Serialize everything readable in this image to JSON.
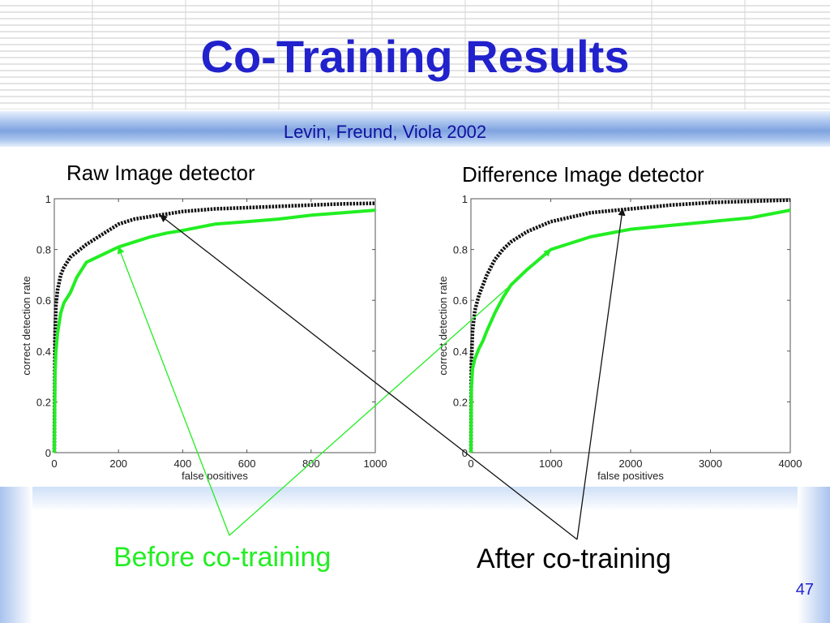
{
  "slide": {
    "title": "Co-Training Results",
    "citation": "Levin, Freund, Viola 2002",
    "page_number": "47",
    "annotations": {
      "before": "Before co-training",
      "after": "After co-training"
    },
    "colors": {
      "title": "#2222cc",
      "before": "#22ee22",
      "after": "#111111",
      "band": "#7fa3e0"
    }
  },
  "chart_data": [
    {
      "type": "line",
      "title": "Raw Image detector",
      "xlabel": "false positives",
      "ylabel": "correct detection rate",
      "xlim": [
        0,
        1000
      ],
      "ylim": [
        0,
        1
      ],
      "xticks": [
        "0",
        "200",
        "400",
        "600",
        "800",
        "1000"
      ],
      "yticks": [
        "0",
        "0.2",
        "0.4",
        "0.6",
        "0.8",
        "1"
      ],
      "xtick_values": [
        0,
        200,
        400,
        600,
        800,
        1000
      ],
      "ytick_values": [
        0,
        0.2,
        0.4,
        0.6,
        0.8,
        1
      ],
      "grid": false,
      "series": [
        {
          "style": "dotted",
          "color": "#111111",
          "x": [
            0,
            2,
            5,
            10,
            20,
            30,
            50,
            70,
            100,
            150,
            200,
            250,
            300,
            350,
            400,
            500,
            600,
            700,
            800,
            900,
            1000
          ],
          "y": [
            0.0,
            0.45,
            0.58,
            0.64,
            0.7,
            0.73,
            0.77,
            0.79,
            0.82,
            0.86,
            0.9,
            0.92,
            0.93,
            0.94,
            0.95,
            0.96,
            0.965,
            0.97,
            0.975,
            0.98,
            0.982
          ]
        },
        {
          "style": "solid",
          "color": "#22ee22",
          "x": [
            0,
            2,
            5,
            10,
            20,
            30,
            50,
            70,
            100,
            150,
            200,
            250,
            300,
            350,
            400,
            500,
            600,
            700,
            800,
            900,
            1000
          ],
          "y": [
            0.0,
            0.3,
            0.4,
            0.47,
            0.55,
            0.59,
            0.63,
            0.69,
            0.75,
            0.78,
            0.81,
            0.83,
            0.85,
            0.865,
            0.875,
            0.9,
            0.91,
            0.92,
            0.935,
            0.945,
            0.955
          ]
        }
      ]
    },
    {
      "type": "line",
      "title": "Difference Image detector",
      "xlabel": "false positives",
      "ylabel": "correct detection rate",
      "xlim": [
        0,
        4000
      ],
      "ylim": [
        0,
        1
      ],
      "xticks": [
        "0",
        "1000",
        "2000",
        "3000",
        "4000"
      ],
      "yticks": [
        "0",
        "0.2",
        "0.4",
        "0.6",
        "0.8",
        "1"
      ],
      "xtick_values": [
        0,
        1000,
        2000,
        3000,
        4000
      ],
      "ytick_values": [
        0,
        0.2,
        0.4,
        0.6,
        0.8,
        1
      ],
      "grid": false,
      "series": [
        {
          "style": "dotted",
          "color": "#111111",
          "x": [
            0,
            5,
            20,
            50,
            100,
            150,
            200,
            300,
            400,
            500,
            700,
            1000,
            1500,
            2000,
            2500,
            3000,
            3500,
            4000
          ],
          "y": [
            0.0,
            0.35,
            0.48,
            0.56,
            0.62,
            0.66,
            0.7,
            0.76,
            0.8,
            0.83,
            0.87,
            0.91,
            0.945,
            0.96,
            0.975,
            0.985,
            0.99,
            0.995
          ]
        },
        {
          "style": "solid",
          "color": "#22ee22",
          "x": [
            0,
            5,
            20,
            50,
            100,
            150,
            200,
            300,
            400,
            500,
            700,
            1000,
            1500,
            2000,
            2500,
            3000,
            3500,
            4000
          ],
          "y": [
            0.0,
            0.25,
            0.33,
            0.37,
            0.41,
            0.44,
            0.48,
            0.55,
            0.61,
            0.66,
            0.72,
            0.8,
            0.85,
            0.88,
            0.895,
            0.91,
            0.925,
            0.955
          ]
        }
      ]
    }
  ]
}
